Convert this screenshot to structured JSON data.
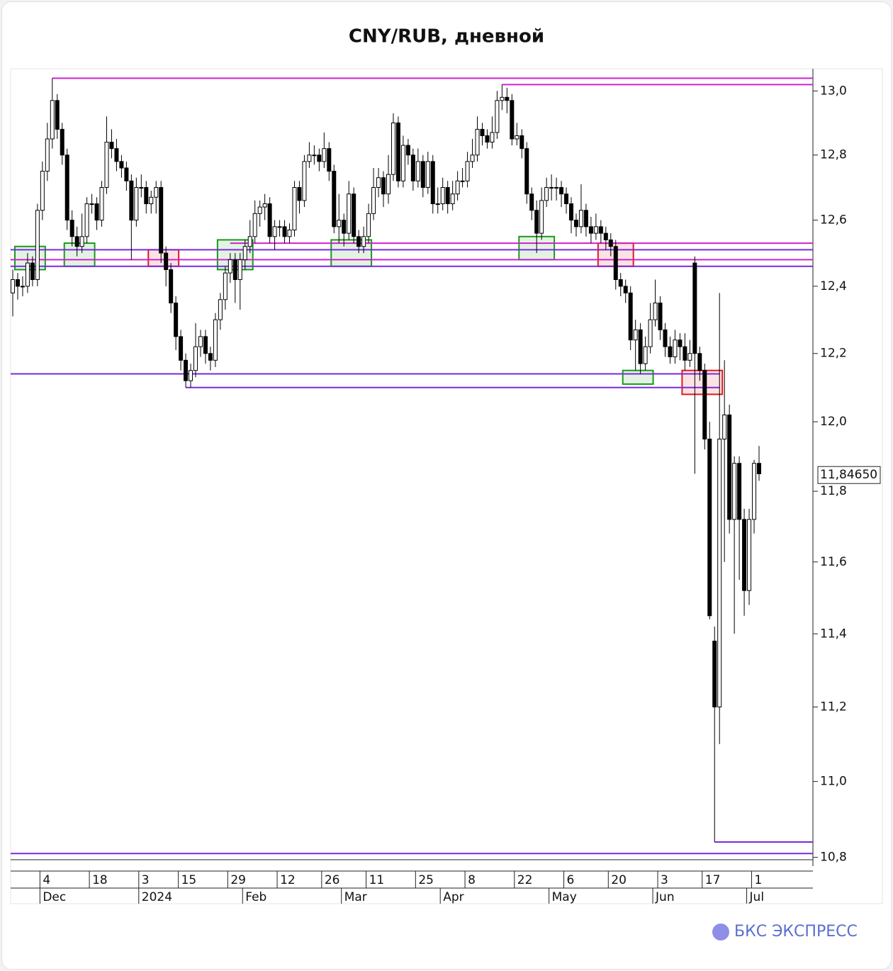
{
  "chart_data": {
    "type": "candlestick",
    "title": "CNY/RUB, дневной",
    "log": true,
    "ylim": [
      10.79,
      13.07
    ],
    "yticks": [
      {
        "value": 10.8,
        "label": "10,8"
      },
      {
        "value": 11,
        "label": "11,0"
      },
      {
        "value": 11.2,
        "label": "11,2"
      },
      {
        "value": 11.4,
        "label": "11,4"
      },
      {
        "value": 11.6,
        "label": "11,6"
      },
      {
        "value": 11.8,
        "label": "11,8"
      },
      {
        "value": 12,
        "label": "12,0"
      },
      {
        "value": 12.2,
        "label": "12,2"
      },
      {
        "value": 12.4,
        "label": "12,4"
      },
      {
        "value": 12.6,
        "label": "12,6"
      },
      {
        "value": 12.8,
        "label": "12,8"
      },
      {
        "value": 13,
        "label": "13,0"
      }
    ],
    "last_price": {
      "value": 11.8465,
      "label": "11,84650"
    },
    "categories": [
      null,
      null,
      null,
      null,
      null,
      null,
      "4",
      null,
      null,
      null,
      null,
      null,
      null,
      null,
      null,
      null,
      "18",
      null,
      null,
      null,
      null,
      null,
      null,
      null,
      null,
      null,
      "3",
      null,
      null,
      null,
      null,
      null,
      null,
      null,
      "15",
      null,
      null,
      null,
      null,
      null,
      null,
      null,
      null,
      null,
      "29",
      null,
      null,
      null,
      null,
      null,
      null,
      null,
      null,
      null,
      "12",
      null,
      null,
      null,
      null,
      null,
      null,
      null,
      null,
      "26",
      null,
      null,
      null,
      null,
      null,
      null,
      null,
      null,
      "11",
      null,
      null,
      null,
      null,
      null,
      null,
      null,
      null,
      null,
      "25",
      null,
      null,
      null,
      null,
      null,
      null,
      null,
      null,
      null,
      "8",
      null,
      null,
      null,
      null,
      null,
      null,
      null,
      null,
      null,
      "22",
      null,
      null,
      null,
      null,
      null,
      null,
      null,
      null,
      null,
      "6",
      null,
      null,
      null,
      null,
      null,
      null,
      null,
      null,
      "20",
      null,
      null,
      null,
      null,
      null,
      null,
      null,
      null,
      null,
      "3",
      null,
      null,
      null,
      null,
      null,
      null,
      null,
      null,
      "17",
      null,
      null,
      null,
      null,
      null,
      null,
      null,
      null,
      null,
      "1",
      null
    ],
    "month_categories": [
      null,
      null,
      null,
      null,
      null,
      null,
      "Dec",
      null,
      null,
      null,
      null,
      null,
      null,
      null,
      null,
      null,
      null,
      null,
      null,
      null,
      null,
      null,
      null,
      null,
      null,
      null,
      "2024",
      null,
      null,
      null,
      null,
      null,
      null,
      null,
      null,
      null,
      null,
      null,
      null,
      null,
      null,
      null,
      null,
      null,
      null,
      null,
      null,
      "Feb",
      null,
      null,
      null,
      null,
      null,
      null,
      null,
      null,
      null,
      null,
      null,
      null,
      null,
      null,
      null,
      null,
      null,
      null,
      null,
      "Mar",
      null,
      null,
      null,
      null,
      null,
      null,
      null,
      null,
      null,
      null,
      null,
      null,
      null,
      null,
      null,
      null,
      null,
      null,
      null,
      "Apr",
      null,
      null,
      null,
      null,
      null,
      null,
      null,
      null,
      null,
      null,
      null,
      null,
      null,
      null,
      null,
      null,
      null,
      null,
      null,
      null,
      null,
      "May",
      null,
      null,
      null,
      null,
      null,
      null,
      null,
      null,
      null,
      null,
      null,
      null,
      null,
      null,
      null,
      null,
      null,
      null,
      null,
      null,
      "Jun",
      null,
      null,
      null,
      null,
      null,
      null,
      null,
      null,
      null,
      null,
      null,
      null,
      null,
      null,
      null,
      null,
      null,
      null,
      "Jul",
      null
    ],
    "ohlc": [
      [
        12.38,
        12.45,
        12.31,
        12.42
      ],
      [
        12.42,
        12.44,
        12.36,
        12.4
      ],
      [
        12.4,
        12.43,
        12.37,
        12.4
      ],
      [
        12.4,
        12.5,
        12.38,
        12.47
      ],
      [
        12.47,
        12.49,
        12.4,
        12.42
      ],
      [
        12.42,
        12.65,
        12.4,
        12.63
      ],
      [
        12.63,
        12.78,
        12.6,
        12.75
      ],
      [
        12.75,
        12.9,
        12.72,
        12.85
      ],
      [
        12.85,
        13.04,
        12.82,
        12.97
      ],
      [
        12.97,
        12.99,
        12.85,
        12.88
      ],
      [
        12.88,
        12.9,
        12.77,
        12.8
      ],
      [
        12.8,
        12.82,
        12.57,
        12.6
      ],
      [
        12.6,
        12.63,
        12.52,
        12.55
      ],
      [
        12.55,
        12.58,
        12.49,
        12.52
      ],
      [
        12.52,
        12.62,
        12.5,
        12.55
      ],
      [
        12.55,
        12.67,
        12.53,
        12.65
      ],
      [
        12.65,
        12.68,
        12.62,
        12.65
      ],
      [
        12.65,
        12.67,
        12.57,
        12.6
      ],
      [
        12.6,
        12.72,
        12.58,
        12.7
      ],
      [
        12.7,
        12.92,
        12.68,
        12.84
      ],
      [
        12.84,
        12.88,
        12.79,
        12.82
      ],
      [
        12.82,
        12.85,
        12.75,
        12.78
      ],
      [
        12.78,
        12.8,
        12.73,
        12.76
      ],
      [
        12.76,
        12.78,
        12.69,
        12.72
      ],
      [
        12.72,
        12.74,
        12.48,
        12.6
      ],
      [
        12.6,
        12.73,
        12.58,
        12.7
      ],
      [
        12.7,
        12.74,
        12.67,
        12.7
      ],
      [
        12.7,
        12.72,
        12.62,
        12.65
      ],
      [
        12.65,
        12.69,
        12.62,
        12.67
      ],
      [
        12.67,
        12.72,
        12.62,
        12.7
      ],
      [
        12.7,
        12.72,
        12.47,
        12.5
      ],
      [
        12.5,
        12.52,
        12.4,
        12.45
      ],
      [
        12.45,
        12.47,
        12.32,
        12.35
      ],
      [
        12.35,
        12.37,
        12.21,
        12.25
      ],
      [
        12.25,
        12.27,
        12.15,
        12.18
      ],
      [
        12.18,
        12.2,
        12.1,
        12.12
      ],
      [
        12.12,
        12.17,
        12.1,
        12.15
      ],
      [
        12.15,
        12.29,
        12.13,
        12.22
      ],
      [
        12.22,
        12.27,
        12.19,
        12.25
      ],
      [
        12.25,
        12.27,
        12.17,
        12.2
      ],
      [
        12.2,
        12.22,
        12.15,
        12.18
      ],
      [
        12.18,
        12.32,
        12.16,
        12.3
      ],
      [
        12.3,
        12.38,
        12.27,
        12.36
      ],
      [
        12.36,
        12.46,
        12.33,
        12.44
      ],
      [
        12.44,
        12.5,
        12.41,
        12.48
      ],
      [
        12.48,
        12.5,
        12.35,
        12.42
      ],
      [
        12.42,
        12.5,
        12.33,
        12.48
      ],
      [
        12.48,
        12.54,
        12.45,
        12.52
      ],
      [
        12.52,
        12.6,
        12.5,
        12.55
      ],
      [
        12.55,
        12.66,
        12.53,
        12.62
      ],
      [
        12.62,
        12.66,
        12.58,
        12.64
      ],
      [
        12.64,
        12.68,
        12.6,
        12.65
      ],
      [
        12.65,
        12.67,
        12.53,
        12.55
      ],
      [
        12.55,
        12.6,
        12.51,
        12.58
      ],
      [
        12.58,
        12.6,
        12.55,
        12.58
      ],
      [
        12.58,
        12.6,
        12.53,
        12.55
      ],
      [
        12.55,
        12.59,
        12.53,
        12.57
      ],
      [
        12.57,
        12.72,
        12.55,
        12.7
      ],
      [
        12.7,
        12.72,
        12.62,
        12.66
      ],
      [
        12.66,
        12.8,
        12.64,
        12.78
      ],
      [
        12.78,
        12.84,
        12.76,
        12.8
      ],
      [
        12.8,
        12.83,
        12.77,
        12.8
      ],
      [
        12.8,
        12.82,
        12.75,
        12.78
      ],
      [
        12.78,
        12.87,
        12.76,
        12.82
      ],
      [
        12.82,
        12.84,
        12.72,
        12.75
      ],
      [
        12.75,
        12.77,
        12.56,
        12.58
      ],
      [
        12.58,
        12.68,
        12.53,
        12.6
      ],
      [
        12.6,
        12.62,
        12.52,
        12.56
      ],
      [
        12.56,
        12.72,
        12.54,
        12.68
      ],
      [
        12.68,
        12.7,
        12.53,
        12.55
      ],
      [
        12.55,
        12.57,
        12.5,
        12.52
      ],
      [
        12.52,
        12.58,
        12.5,
        12.55
      ],
      [
        12.55,
        12.65,
        12.53,
        12.62
      ],
      [
        12.62,
        12.76,
        12.6,
        12.7
      ],
      [
        12.7,
        12.76,
        12.67,
        12.73
      ],
      [
        12.73,
        12.75,
        12.64,
        12.68
      ],
      [
        12.68,
        12.8,
        12.65,
        12.74
      ],
      [
        12.74,
        12.93,
        12.72,
        12.9
      ],
      [
        12.9,
        12.92,
        12.7,
        12.72
      ],
      [
        12.72,
        12.86,
        12.7,
        12.83
      ],
      [
        12.83,
        12.85,
        12.77,
        12.8
      ],
      [
        12.8,
        12.82,
        12.69,
        12.72
      ],
      [
        12.72,
        12.82,
        12.7,
        12.78
      ],
      [
        12.78,
        12.8,
        12.67,
        12.7
      ],
      [
        12.7,
        12.81,
        12.68,
        12.78
      ],
      [
        12.78,
        12.8,
        12.62,
        12.65
      ],
      [
        12.65,
        12.7,
        12.62,
        12.65
      ],
      [
        12.65,
        12.73,
        12.63,
        12.7
      ],
      [
        12.7,
        12.72,
        12.62,
        12.65
      ],
      [
        12.65,
        12.72,
        12.63,
        12.68
      ],
      [
        12.68,
        12.75,
        12.66,
        12.72
      ],
      [
        12.72,
        12.76,
        12.7,
        12.72
      ],
      [
        12.72,
        12.81,
        12.7,
        12.78
      ],
      [
        12.78,
        12.85,
        12.76,
        12.8
      ],
      [
        12.8,
        12.92,
        12.78,
        12.88
      ],
      [
        12.88,
        12.9,
        12.83,
        12.86
      ],
      [
        12.86,
        12.88,
        12.82,
        12.84
      ],
      [
        12.84,
        12.92,
        12.82,
        12.87
      ],
      [
        12.87,
        13.0,
        12.85,
        12.97
      ],
      [
        12.97,
        13.02,
        12.94,
        12.98
      ],
      [
        12.98,
        13.01,
        12.93,
        12.97
      ],
      [
        12.97,
        12.99,
        12.83,
        12.85
      ],
      [
        12.85,
        12.9,
        12.83,
        12.86
      ],
      [
        12.86,
        12.88,
        12.79,
        12.82
      ],
      [
        12.82,
        12.84,
        12.65,
        12.68
      ],
      [
        12.68,
        12.7,
        12.6,
        12.63
      ],
      [
        12.63,
        12.66,
        12.5,
        12.56
      ],
      [
        12.56,
        12.7,
        12.54,
        12.66
      ],
      [
        12.66,
        12.73,
        12.64,
        12.7
      ],
      [
        12.7,
        12.74,
        12.66,
        12.7
      ],
      [
        12.7,
        12.73,
        12.66,
        12.7
      ],
      [
        12.7,
        12.72,
        12.64,
        12.68
      ],
      [
        12.68,
        12.7,
        12.62,
        12.65
      ],
      [
        12.65,
        12.67,
        12.56,
        12.6
      ],
      [
        12.6,
        12.62,
        12.55,
        12.58
      ],
      [
        12.58,
        12.71,
        12.56,
        12.63
      ],
      [
        12.63,
        12.65,
        12.55,
        12.58
      ],
      [
        12.58,
        12.61,
        12.53,
        12.56
      ],
      [
        12.56,
        12.62,
        12.54,
        12.58
      ],
      [
        12.58,
        12.6,
        12.53,
        12.56
      ],
      [
        12.56,
        12.58,
        12.51,
        12.54
      ],
      [
        12.54,
        12.56,
        12.49,
        12.52
      ],
      [
        12.52,
        12.54,
        12.39,
        12.42
      ],
      [
        12.42,
        12.44,
        12.37,
        12.4
      ],
      [
        12.4,
        12.42,
        12.35,
        12.38
      ],
      [
        12.38,
        12.4,
        12.21,
        12.24
      ],
      [
        12.24,
        12.3,
        12.15,
        12.27
      ],
      [
        12.27,
        12.29,
        12.14,
        12.17
      ],
      [
        12.17,
        12.25,
        12.15,
        12.22
      ],
      [
        12.22,
        12.35,
        12.2,
        12.3
      ],
      [
        12.3,
        12.42,
        12.28,
        12.35
      ],
      [
        12.35,
        12.37,
        12.24,
        12.27
      ],
      [
        12.27,
        12.29,
        12.19,
        12.22
      ],
      [
        12.22,
        12.25,
        12.17,
        12.19
      ],
      [
        12.19,
        12.27,
        12.17,
        12.24
      ],
      [
        12.24,
        12.26,
        12.18,
        12.22
      ],
      [
        12.22,
        12.26,
        12.15,
        12.18
      ],
      [
        12.18,
        12.24,
        12.16,
        12.2
      ],
      [
        12.47,
        12.49,
        11.85,
        12.2
      ],
      [
        12.2,
        12.22,
        12.12,
        12.15
      ],
      [
        12.15,
        12.17,
        11.92,
        11.95
      ],
      [
        11.95,
        12.0,
        11.44,
        11.45
      ],
      [
        11.38,
        11.42,
        10.84,
        11.2
      ],
      [
        11.2,
        12.38,
        11.1,
        11.95
      ],
      [
        11.95,
        12.18,
        11.6,
        12.02
      ],
      [
        12.02,
        12.05,
        11.68,
        11.72
      ],
      [
        11.72,
        11.9,
        11.4,
        11.88
      ],
      [
        11.88,
        11.9,
        11.55,
        11.72
      ],
      [
        11.72,
        11.75,
        11.45,
        11.52
      ],
      [
        11.52,
        11.75,
        11.48,
        11.72
      ],
      [
        11.72,
        11.89,
        11.68,
        11.88
      ],
      [
        11.88,
        11.93,
        11.83,
        11.85
      ]
    ],
    "levels": [
      {
        "value": 13.04,
        "color": "#d020d0",
        "start": 8
      },
      {
        "value": 13.02,
        "color": "#d020d0",
        "start": 99
      },
      {
        "value": 12.53,
        "color": "#d020d0",
        "start": 44
      },
      {
        "value": 12.51,
        "color": "#7a2ae0",
        "start": 0
      },
      {
        "value": 12.48,
        "color": "#d020d0",
        "start": 0
      },
      {
        "value": 12.46,
        "color": "#7a2ae0",
        "start": 0
      },
      {
        "value": 12.14,
        "color": "#7a2ae0",
        "start": 0,
        "end": 143
      },
      {
        "value": 12.1,
        "color": "#7a2ae0",
        "start": 35,
        "end": 143
      },
      {
        "value": 10.84,
        "color": "#7a2ae0",
        "start": 142
      },
      {
        "value": 10.81,
        "color": "#7a2ae0",
        "start": 0
      }
    ],
    "boxes": [
      {
        "start": 1,
        "end": 6,
        "low": 12.45,
        "high": 12.52,
        "color": "#1a9a1a"
      },
      {
        "start": 11,
        "end": 16,
        "low": 12.46,
        "high": 12.53,
        "color": "#1a9a1a"
      },
      {
        "start": 28,
        "end": 33,
        "low": 12.46,
        "high": 12.51,
        "color": "#e01a1a"
      },
      {
        "start": 42,
        "end": 48,
        "low": 12.45,
        "high": 12.54,
        "color": "#1a9a1a"
      },
      {
        "start": 65,
        "end": 72,
        "low": 12.46,
        "high": 12.54,
        "color": "#1a9a1a"
      },
      {
        "start": 103,
        "end": 109,
        "low": 12.48,
        "high": 12.55,
        "color": "#1a9a1a"
      },
      {
        "start": 119,
        "end": 125,
        "low": 12.46,
        "high": 12.53,
        "color": "#e01a1a"
      },
      {
        "start": 124,
        "end": 129,
        "low": 12.11,
        "high": 12.15,
        "color": "#1a9a1a"
      },
      {
        "start": 136,
        "end": 143,
        "low": 12.08,
        "high": 12.15,
        "color": "#e01a1a"
      }
    ]
  },
  "brand": "БКС ЭКСПРЕСС"
}
